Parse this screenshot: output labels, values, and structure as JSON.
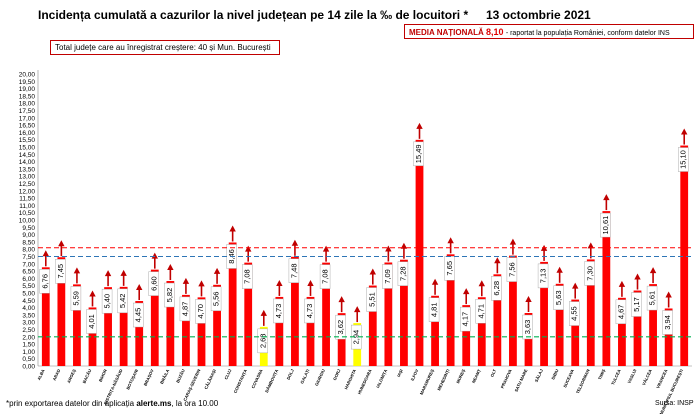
{
  "header": {
    "title": "Incidența cumulată a cazurilor la nivel județean pe 14 zile la ‰ de locuitori *",
    "date": "13 octombrie 2021",
    "media_label": "MEDIA NAȚIONALĂ",
    "media_value": "8,10",
    "media_sep": " - ",
    "media_note": "raportat la populația României, conform datelor INS",
    "growth_note": "Total județe care au înregistrat creștere:  40 și Mun. București"
  },
  "footer": {
    "note_prefix": "*prin exportarea datelor din aplicația ",
    "note_site": "alerte.ms",
    "note_suffix": ", la ora 10.00",
    "credit": "Sursa: INSP"
  },
  "colors": {
    "bar": "#ff0000",
    "bar_yellow": "#ffff00",
    "arrow": "#c00000",
    "media_line": "#ff0000",
    "blue_line": "#2e75b6",
    "green_line": "#00b050"
  },
  "chart_data": {
    "type": "bar",
    "categories": [
      "ALBA",
      "ARAD",
      "ARGEȘ",
      "BACĂU",
      "BIHOR",
      "BISTRIȚA-NĂSĂUD",
      "BOTOȘANI",
      "BRAȘOV",
      "BRĂILA",
      "BUZĂU",
      "CARAȘ-SEVERIN",
      "CĂLĂRAȘI",
      "CLUJ",
      "CONSTANȚA",
      "COVASNA",
      "DÂMBOVIȚA",
      "DOLJ",
      "GALAȚI",
      "GIURGIU",
      "GORJ",
      "HARGHITA",
      "HUNEDOARA",
      "IALOMIȚA",
      "IAȘI",
      "ILFOV",
      "MARAMUREȘ",
      "MEHEDINȚI",
      "MUREȘ",
      "NEAMȚ",
      "OLT",
      "PRAHOVA",
      "SATU MARE",
      "SĂLAJ",
      "SIBIU",
      "SUCEAVA",
      "TELEORMAN",
      "TIMIȘ",
      "TULCEA",
      "VASLUI",
      "VÂLCEA",
      "VRANCEA",
      "MUNICIPIUL BUCUREȘTI"
    ],
    "values": [
      6.76,
      7.45,
      5.59,
      4.01,
      5.4,
      5.42,
      4.45,
      6.6,
      5.82,
      4.87,
      4.7,
      5.56,
      8.46,
      7.08,
      2.68,
      4.73,
      7.48,
      4.73,
      7.08,
      3.62,
      2.94,
      5.51,
      7.09,
      7.28,
      15.49,
      4.81,
      7.65,
      4.17,
      4.71,
      6.28,
      7.56,
      3.63,
      7.13,
      5.63,
      4.55,
      7.3,
      10.61,
      4.67,
      5.17,
      5.61,
      3.94,
      15.1
    ],
    "labels": [
      "6,76",
      "7,45",
      "5,59",
      "4,01",
      "5,40",
      "5,42",
      "4,45",
      "6,60",
      "5,82",
      "4,87",
      "4,70",
      "5,56",
      "8,46",
      "7,08",
      "2,68",
      "4,73",
      "7,48",
      "4,73",
      "7,08",
      "3,62",
      "2,94",
      "5,51",
      "7,09",
      "7,28",
      "15,49",
      "4,81",
      "7,65",
      "4,17",
      "4,71",
      "6,28",
      "7,56",
      "3,63",
      "7,13",
      "5,63",
      "4,55",
      "7,30",
      "10,61",
      "4,67",
      "5,17",
      "5,61",
      "3,94",
      "15,10"
    ],
    "yellow_categories": [
      "COVASNA",
      "HARGHITA"
    ],
    "ylim": [
      0,
      20
    ],
    "ytick_step": 0.5,
    "reference_lines": [
      {
        "value": 8.1,
        "color": "#ff0000",
        "style": "dashed"
      },
      {
        "value": 7.5,
        "color": "#2e75b6",
        "style": "dashed"
      },
      {
        "value": 2.0,
        "color": "#00b050",
        "style": "dashed"
      }
    ],
    "trend": "up"
  }
}
